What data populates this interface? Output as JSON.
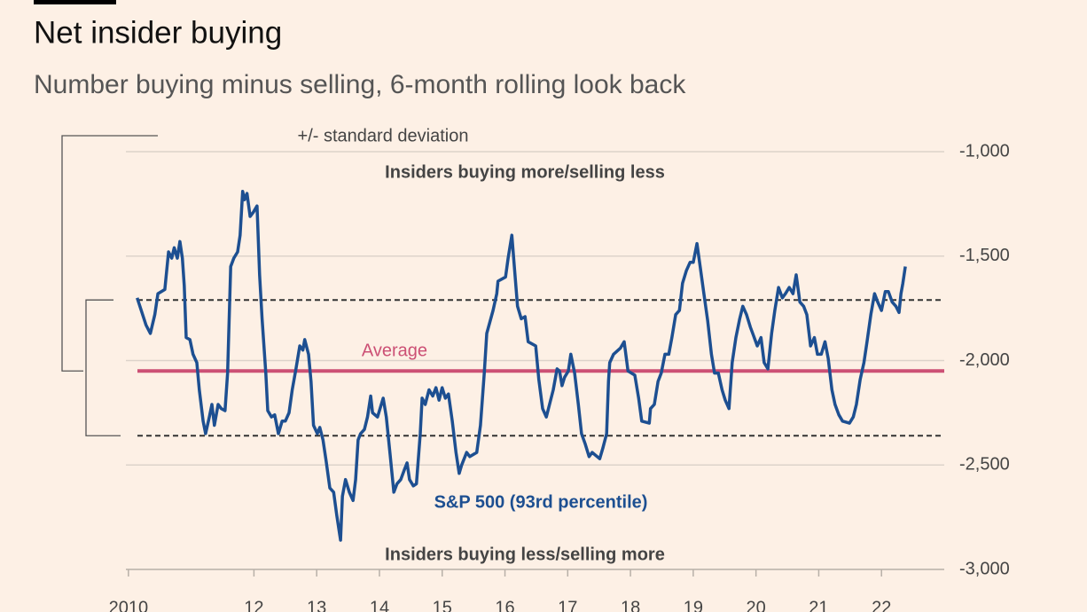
{
  "chart_data": {
    "type": "line",
    "title": "Net insider buying",
    "subtitle": "Number buying minus selling, 6-month rolling look back",
    "annotations": [
      "+/- standard deviation",
      "Insiders buying more/selling less",
      "Insiders buying less/selling more"
    ],
    "x": [
      2010.14,
      2010.28,
      2010.35,
      2010.42,
      2010.47,
      2010.58,
      2010.64,
      2010.69,
      2010.73,
      2010.78,
      2010.82,
      2010.86,
      2010.89,
      2010.92,
      2010.98,
      2011.03,
      2011.09,
      2011.13,
      2011.19,
      2011.23,
      2011.29,
      2011.33,
      2011.37,
      2011.43,
      2011.48,
      2011.54,
      2011.58,
      2011.63,
      2011.68,
      2011.74,
      2011.78,
      2011.82,
      2011.85,
      2011.89,
      2011.94,
      2011.99,
      2012.05,
      2012.09,
      2012.13,
      2012.19,
      2012.22,
      2012.28,
      2012.33,
      2012.39,
      2012.45,
      2012.5,
      2012.56,
      2012.61,
      2012.67,
      2012.73,
      2012.78,
      2012.81,
      2012.87,
      2012.91,
      2012.95,
      2013.01,
      2013.05,
      2013.1,
      2013.15,
      2013.21,
      2013.27,
      2013.32,
      2013.38,
      2013.41,
      2013.46,
      2013.52,
      2013.58,
      2013.62,
      2013.66,
      2013.7,
      2013.76,
      2013.81,
      2013.86,
      2013.89,
      2013.97,
      2014.06,
      2014.11,
      2014.17,
      2014.23,
      2014.28,
      2014.34,
      2014.4,
      2014.44,
      2014.48,
      2014.54,
      2014.59,
      2014.65,
      2014.68,
      2014.73,
      2014.79,
      2014.85,
      2014.9,
      2014.95,
      2015.0,
      2015.05,
      2015.1,
      2015.16,
      2015.22,
      2015.27,
      2015.31,
      2015.39,
      2015.44,
      2015.55,
      2015.61,
      2015.67,
      2015.71,
      2015.81,
      2015.87,
      2015.89,
      2016.01,
      2016.05,
      2016.11,
      2016.15,
      2016.2,
      2016.26,
      2016.32,
      2016.37,
      2016.49,
      2016.54,
      2016.6,
      2016.66,
      2016.71,
      2016.77,
      2016.83,
      2016.87,
      2016.91,
      2016.95,
      2017.01,
      2017.05,
      2017.11,
      2017.17,
      2017.22,
      2017.28,
      2017.34,
      2017.39,
      2017.51,
      2017.56,
      2017.62,
      2017.65,
      2017.67,
      2017.73,
      2017.84,
      2017.9,
      2017.96,
      2018.07,
      2018.13,
      2018.18,
      2018.3,
      2018.32,
      2018.38,
      2018.44,
      2018.49,
      2018.55,
      2018.61,
      2018.66,
      2018.72,
      2018.78,
      2018.83,
      2018.89,
      2018.95,
      2019.0,
      2019.06,
      2019.11,
      2019.17,
      2019.23,
      2019.29,
      2019.34,
      2019.4,
      2019.46,
      2019.51,
      2019.57,
      2019.62,
      2019.68,
      2019.74,
      2019.79,
      2019.85,
      2019.91,
      2019.96,
      2020.02,
      2020.08,
      2020.13,
      2020.19,
      2020.25,
      2020.3,
      2020.36,
      2020.42,
      2020.47,
      2020.53,
      2020.59,
      2020.64,
      2020.7,
      2020.76,
      2020.81,
      2020.87,
      2020.93,
      2020.98,
      2021.04,
      2021.1,
      2021.15,
      2021.21,
      2021.26,
      2021.32,
      2021.38,
      2021.49,
      2021.55,
      2021.6,
      2021.66,
      2021.72,
      2021.77,
      2021.83,
      2021.89,
      2021.94,
      2022.0,
      2022.06,
      2022.11,
      2022.17,
      2022.23,
      2022.28,
      2022.31,
      2022.34,
      2022.38
    ],
    "series": [
      {
        "name": "S&P 500 (93rd percentile)",
        "color": "#1d4f91",
        "values": [
          -1700,
          -1830,
          -1870,
          -1780,
          -1680,
          -1660,
          -1480,
          -1510,
          -1460,
          -1510,
          -1430,
          -1510,
          -1640,
          -1890,
          -1900,
          -1970,
          -2010,
          -2140,
          -2290,
          -2350,
          -2270,
          -2210,
          -2310,
          -2210,
          -2230,
          -2240,
          -2060,
          -1550,
          -1510,
          -1480,
          -1400,
          -1190,
          -1230,
          -1200,
          -1310,
          -1290,
          -1260,
          -1590,
          -1800,
          -2060,
          -2240,
          -2270,
          -2260,
          -2350,
          -2290,
          -2290,
          -2250,
          -2140,
          -2040,
          -1930,
          -1950,
          -1900,
          -1970,
          -2100,
          -2310,
          -2350,
          -2320,
          -2380,
          -2480,
          -2610,
          -2630,
          -2740,
          -2860,
          -2650,
          -2570,
          -2630,
          -2670,
          -2570,
          -2380,
          -2350,
          -2330,
          -2270,
          -2170,
          -2250,
          -2270,
          -2180,
          -2270,
          -2450,
          -2630,
          -2590,
          -2570,
          -2520,
          -2490,
          -2570,
          -2600,
          -2590,
          -2350,
          -2180,
          -2210,
          -2140,
          -2170,
          -2130,
          -2190,
          -2130,
          -2180,
          -2160,
          -2290,
          -2440,
          -2540,
          -2500,
          -2440,
          -2460,
          -2440,
          -2310,
          -2060,
          -1870,
          -1760,
          -1680,
          -1620,
          -1600,
          -1510,
          -1400,
          -1550,
          -1740,
          -1800,
          -1790,
          -1910,
          -1930,
          -2090,
          -2230,
          -2270,
          -2210,
          -2140,
          -2040,
          -2050,
          -2120,
          -2080,
          -2050,
          -1970,
          -2060,
          -2210,
          -2350,
          -2400,
          -2460,
          -2440,
          -2470,
          -2420,
          -2350,
          -2100,
          -2010,
          -1970,
          -1940,
          -1910,
          -2050,
          -2070,
          -2180,
          -2290,
          -2300,
          -2230,
          -2210,
          -2100,
          -2060,
          -1970,
          -1970,
          -1890,
          -1780,
          -1760,
          -1630,
          -1570,
          -1530,
          -1530,
          -1440,
          -1550,
          -1680,
          -1810,
          -1970,
          -2060,
          -2060,
          -2140,
          -2190,
          -2230,
          -2010,
          -1890,
          -1800,
          -1740,
          -1780,
          -1840,
          -1880,
          -1930,
          -1890,
          -2010,
          -2040,
          -1870,
          -1760,
          -1650,
          -1700,
          -1680,
          -1650,
          -1680,
          -1590,
          -1720,
          -1740,
          -1780,
          -1930,
          -1890,
          -1970,
          -1970,
          -1910,
          -1990,
          -2140,
          -2210,
          -2260,
          -2290,
          -2300,
          -2270,
          -2210,
          -2090,
          -2010,
          -1910,
          -1780,
          -1680,
          -1720,
          -1760,
          -1670,
          -1670,
          -1720,
          -1740,
          -1770,
          -1680,
          -1630,
          -1550
        ]
      }
    ],
    "reference_lines": [
      {
        "label": "Average",
        "value": -2050,
        "color": "#cc5075",
        "style": "solid"
      },
      {
        "value": -1710,
        "color": "#333333",
        "style": "dashed"
      },
      {
        "value": -2360,
        "color": "#333333",
        "style": "dashed"
      }
    ],
    "xlim": [
      2009.96,
      2023.0
    ],
    "xticks": [
      {
        "value": 2010,
        "label": "2010"
      },
      {
        "value": 2012,
        "label": "12"
      },
      {
        "value": 2013,
        "label": "13"
      },
      {
        "value": 2014,
        "label": "14"
      },
      {
        "value": 2015,
        "label": "15"
      },
      {
        "value": 2016,
        "label": "16"
      },
      {
        "value": 2017,
        "label": "17"
      },
      {
        "value": 2018,
        "label": "18"
      },
      {
        "value": 2019,
        "label": "19"
      },
      {
        "value": 2020,
        "label": "20"
      },
      {
        "value": 2021,
        "label": "21"
      },
      {
        "value": 2022,
        "label": "22"
      }
    ],
    "ylim": [
      -3000,
      -1000
    ],
    "yticks": [
      {
        "value": -1000,
        "label": "-1,000"
      },
      {
        "value": -1500,
        "label": "-1,500"
      },
      {
        "value": -2000,
        "label": "-2,000"
      },
      {
        "value": -2500,
        "label": "-2,500"
      },
      {
        "value": -3000,
        "label": "-3,000"
      }
    ],
    "grid": true
  }
}
